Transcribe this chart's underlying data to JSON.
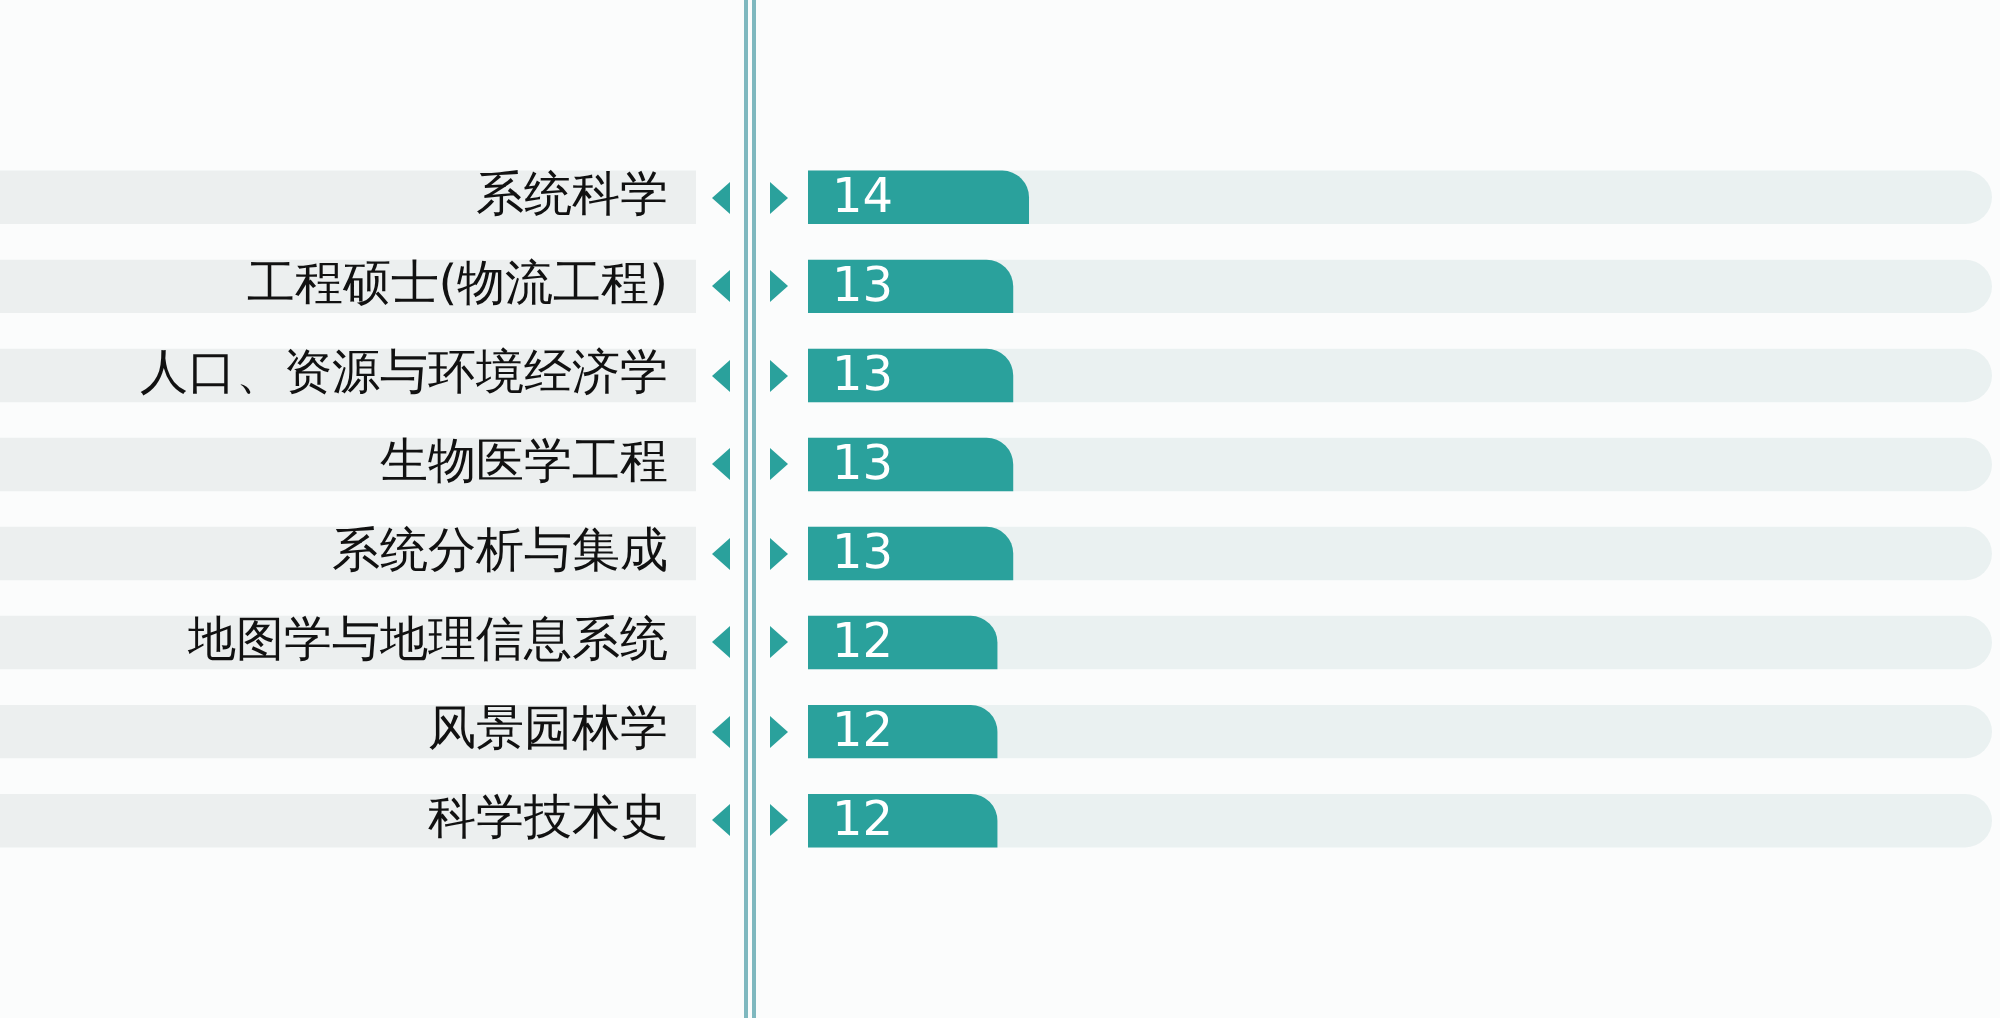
{
  "chart_data": {
    "type": "bar",
    "orientation": "horizontal",
    "categories": [
      "系统科学",
      "工程硕士(物流工程)",
      "人口、资源与环境经济学",
      "生物医学工程",
      "系统分析与集成",
      "地图学与地理信息系统",
      "风景园林学",
      "科学技术史"
    ],
    "values": [
      14,
      13,
      13,
      13,
      13,
      12,
      12,
      12
    ],
    "color": "#2aa19c",
    "xlim": [
      0,
      75
    ],
    "tick_labels": "y",
    "data_labels": true
  }
}
